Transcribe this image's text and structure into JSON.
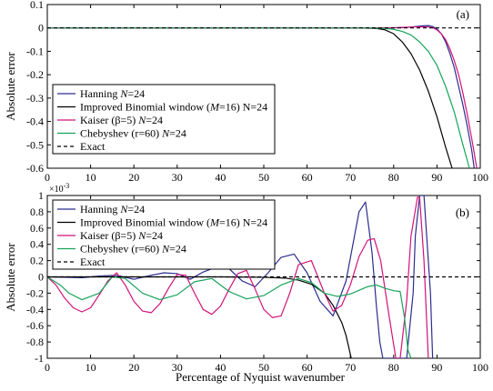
{
  "xlabel": "Percentage of Nyquist wavenumber",
  "chart_data": [
    {
      "type": "line",
      "panel_label": "(a)",
      "xlim": [
        0,
        100
      ],
      "ylim": [
        -0.6,
        0.1
      ],
      "ylabel": "Absolute error",
      "xticks": [
        "0",
        "10",
        "20",
        "30",
        "40",
        "50",
        "60",
        "70",
        "80",
        "90",
        "100"
      ],
      "yticks": [
        "0.1",
        "0",
        "-0.1",
        "-0.2",
        "-0.3",
        "-0.4",
        "-0.5",
        "-0.6"
      ],
      "legend_position": "lower-left",
      "series": [
        {
          "name_prefix": "Hanning ",
          "name_italic": "N",
          "name_suffix": "=24",
          "color": "#2c2c8e",
          "dashed": false,
          "x": [
            0,
            70,
            78,
            82,
            84,
            86,
            88,
            89,
            90,
            91,
            92,
            93,
            94,
            95,
            96,
            97,
            98,
            98.6
          ],
          "y": [
            0,
            0,
            0,
            0.001,
            0.004,
            0.008,
            0.01,
            0.006,
            -0.004,
            -0.025,
            -0.06,
            -0.11,
            -0.17,
            -0.25,
            -0.33,
            -0.42,
            -0.52,
            -0.6
          ]
        },
        {
          "name_prefix": "Improved Binomial window (",
          "name_italic": "M",
          "name_suffix": "=16) N=24",
          "color": "#000000",
          "dashed": false,
          "x": [
            0,
            72,
            76,
            78,
            80,
            82,
            84,
            86,
            88,
            90,
            92,
            93.5
          ],
          "y": [
            0,
            0,
            -0.002,
            -0.008,
            -0.025,
            -0.06,
            -0.11,
            -0.18,
            -0.27,
            -0.38,
            -0.51,
            -0.6
          ]
        },
        {
          "name_prefix": "Kaiser (β=5) ",
          "name_italic": "N",
          "name_suffix": "=24",
          "color": "#d2127a",
          "dashed": false,
          "x": [
            0,
            76,
            80,
            84,
            86,
            88,
            89,
            90,
            91,
            92,
            93,
            94,
            95,
            96,
            97,
            98,
            99.2
          ],
          "y": [
            0,
            0,
            0.001,
            0.004,
            0.005,
            0.004,
            0.001,
            -0.008,
            -0.025,
            -0.05,
            -0.09,
            -0.14,
            -0.2,
            -0.28,
            -0.37,
            -0.47,
            -0.6
          ]
        },
        {
          "name_prefix": "Chebyshev (r=60) ",
          "name_italic": "N",
          "name_suffix": "=24",
          "color": "#17a35a",
          "dashed": false,
          "x": [
            0,
            74,
            78,
            80,
            82,
            84,
            86,
            88,
            90,
            92,
            94,
            96,
            97.5
          ],
          "y": [
            0,
            0,
            -0.002,
            -0.006,
            -0.015,
            -0.03,
            -0.06,
            -0.1,
            -0.16,
            -0.25,
            -0.36,
            -0.5,
            -0.6
          ]
        },
        {
          "name_prefix": "Exact",
          "name_italic": "",
          "name_suffix": "",
          "color": "#000000",
          "dashed": true,
          "x": [
            0,
            100
          ],
          "y": [
            0,
            0
          ]
        }
      ]
    },
    {
      "type": "line",
      "panel_label": "(b)",
      "xlim": [
        0,
        100
      ],
      "ylim": [
        -1,
        1
      ],
      "ylabel": "Absolute error",
      "exponent_label": "×10",
      "exponent_power": "-3",
      "xticks": [
        "0",
        "10",
        "20",
        "30",
        "40",
        "50",
        "60",
        "70",
        "80",
        "90",
        "100"
      ],
      "yticks": [
        "1",
        "0.8",
        "0.6",
        "0.4",
        "0.2",
        "0",
        "-0.2",
        "-0.4",
        "-0.6",
        "-0.8",
        "-1"
      ],
      "legend_position": "top-left",
      "series": [
        {
          "name_prefix": "Hanning ",
          "name_italic": "N",
          "name_suffix": "=24",
          "color": "#2c2c8e",
          "dashed": false,
          "x": [
            0,
            4,
            8,
            12,
            16,
            20,
            24,
            27,
            30,
            33,
            36,
            39,
            42,
            45,
            48,
            51,
            54,
            57,
            60,
            63,
            66,
            69,
            72,
            73.5,
            75,
            76,
            76.8,
            77.5,
            80,
            83,
            84.5,
            85,
            86,
            87,
            88.5,
            89
          ],
          "y": [
            0,
            -0.005,
            -0.01,
            0.01,
            0.02,
            -0.03,
            0.02,
            0.05,
            0.04,
            -0.03,
            0.06,
            0.12,
            0.1,
            -0.05,
            -0.12,
            0.05,
            0.24,
            0.28,
            0.05,
            -0.3,
            -0.48,
            -0.05,
            0.8,
            0.92,
            0.3,
            -0.35,
            -0.8,
            -1,
            -1,
            -1,
            -0.2,
            0.5,
            1,
            1,
            -0.2,
            -1
          ]
        },
        {
          "name_prefix": "Improved Binomial window (",
          "name_italic": "M",
          "name_suffix": "=16) N=24",
          "color": "#000000",
          "dashed": false,
          "x": [
            0,
            40,
            50,
            55,
            58,
            61,
            64,
            66,
            68,
            69,
            70.2
          ],
          "y": [
            0,
            0,
            -0.005,
            -0.015,
            -0.04,
            -0.09,
            -0.2,
            -0.35,
            -0.56,
            -0.72,
            -1
          ]
        },
        {
          "name_prefix": "Kaiser (β=5) ",
          "name_italic": "N",
          "name_suffix": "=24",
          "color": "#d2127a",
          "dashed": false,
          "x": [
            0,
            2,
            4,
            6,
            8,
            10,
            12,
            14,
            16,
            18,
            20,
            22,
            24,
            26,
            28,
            30,
            32,
            34,
            36,
            38,
            40,
            42,
            44,
            46,
            48,
            50,
            52,
            54,
            56,
            58,
            61,
            64,
            66,
            68,
            70,
            72,
            74,
            75.5,
            77,
            79,
            80.5,
            81.5,
            83,
            84,
            85.5,
            86,
            87,
            88
          ],
          "y": [
            0,
            -0.1,
            -0.26,
            -0.38,
            -0.43,
            -0.38,
            -0.22,
            -0.05,
            0.05,
            -0.1,
            -0.3,
            -0.42,
            -0.44,
            -0.33,
            -0.14,
            0.03,
            0.02,
            -0.2,
            -0.4,
            -0.46,
            -0.36,
            -0.15,
            0.04,
            0.08,
            -0.15,
            -0.4,
            -0.5,
            -0.48,
            -0.2,
            0.15,
            0.2,
            -0.2,
            -0.42,
            -0.35,
            -0.1,
            0.25,
            0.45,
            0.47,
            0.2,
            -0.5,
            -1,
            -1,
            -0.3,
            0.5,
            0.98,
            0.98,
            0.2,
            -1
          ]
        },
        {
          "name_prefix": "Chebyshev (r=60) ",
          "name_italic": "N",
          "name_suffix": "=24",
          "color": "#17a35a",
          "dashed": false,
          "x": [
            0,
            3,
            5,
            8,
            12,
            15,
            18,
            22,
            26,
            30,
            34,
            38,
            42,
            46,
            50,
            54,
            58,
            61,
            64,
            67,
            70,
            74,
            76,
            78,
            80,
            81.5,
            82.5,
            83.3,
            84
          ],
          "y": [
            0,
            -0.1,
            -0.2,
            -0.28,
            -0.2,
            0,
            -0.02,
            -0.2,
            -0.28,
            -0.22,
            -0.06,
            -0.02,
            -0.18,
            -0.27,
            -0.23,
            -0.1,
            -0.02,
            -0.07,
            -0.2,
            -0.24,
            -0.21,
            -0.12,
            -0.1,
            -0.14,
            -0.17,
            -0.18,
            -0.5,
            -0.9,
            -1
          ]
        },
        {
          "name_prefix": "Exact",
          "name_italic": "",
          "name_suffix": "",
          "color": "#000000",
          "dashed": true,
          "x": [
            0,
            100
          ],
          "y": [
            0,
            0
          ]
        }
      ]
    }
  ]
}
